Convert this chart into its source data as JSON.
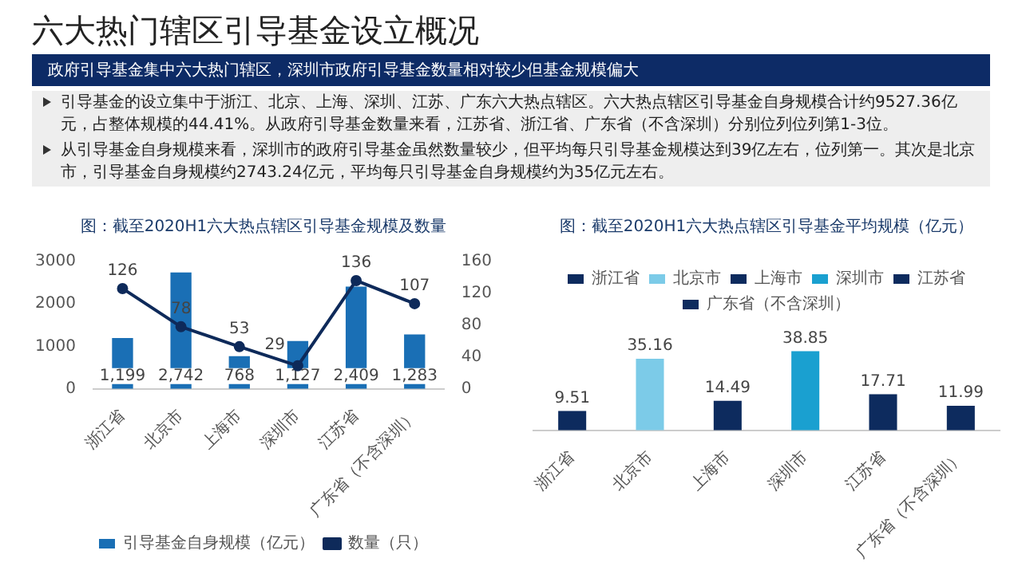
{
  "chart_data": [
    {
      "type": "bar",
      "title": "图：截至2020H1六大热点辖区引导基金规模及数量",
      "annotations": [
        "六大热门辖区引导基金设立概况",
        "政府引导基金集中六大热门辖区，深圳市政府引导基金数量相对较少但基金规模偏大",
        "引导基金的设立集中于浙江、北京、上海、深圳、江苏、广东六大热点辖区。六大热点辖区引导基金自身规模合计约9527.36亿元，占整体规模的44.41%。从政府引导基金数量来看，江苏省、浙江省、广东省（不含深圳）分别位列位列第1-3位。",
        "从引导基金自身规模来看，深圳市的政府引导基金虽然数量较少，但平均每只引导基金规模达到39亿左右，位列第一。其次是北京市，引导基金自身规模约2743.24亿元，平均每只引导基金自身规模约为35亿元左右。"
      ],
      "categories": [
        "浙江省",
        "北京市",
        "上海市",
        "深圳市",
        "江苏省",
        "广东省（不含深圳）"
      ],
      "series": [
        {
          "name": "引导基金自身规模（亿元）",
          "type": "bar",
          "color": "#1a6fb5",
          "values": [
            1199,
            2742,
            768,
            1127,
            2409,
            1283
          ],
          "value_labels": [
            "1,199",
            "2,742",
            "768",
            "1,127",
            "2,409",
            "1,283"
          ]
        },
        {
          "name": "数量（只）",
          "type": "line",
          "axis": "y2",
          "color": "#0e2a5a",
          "values": [
            126,
            78,
            53,
            29,
            136,
            107
          ],
          "value_labels": [
            "126",
            "78",
            "53",
            "29",
            "136",
            "107"
          ]
        }
      ],
      "ylim": [
        0,
        3000
      ],
      "yticks": [
        0,
        1000,
        2000,
        3000
      ],
      "y2lim": [
        0,
        160
      ],
      "y2ticks": [
        0,
        40,
        80,
        120,
        160
      ],
      "grid": false,
      "legend": "bottom",
      "marker": "circle"
    },
    {
      "type": "bar",
      "title": "图：截至2020H1六大热点辖区引导基金平均规模（亿元）",
      "categories": [
        "浙江省",
        "北京市",
        "上海市",
        "深圳市",
        "江苏省",
        "广东省（不含深圳）"
      ],
      "series": [
        {
          "name": "浙江省",
          "color": "#0d2b5e",
          "values": [
            9.51,
            null,
            null,
            null,
            null,
            null
          ]
        },
        {
          "name": "北京市",
          "color": "#7ccbe8",
          "values": [
            null,
            35.16,
            null,
            null,
            null,
            null
          ]
        },
        {
          "name": "上海市",
          "color": "#0d2b5e",
          "values": [
            null,
            null,
            14.49,
            null,
            null,
            null
          ]
        },
        {
          "name": "深圳市",
          "color": "#1aa0d0",
          "values": [
            null,
            null,
            null,
            38.85,
            null,
            null
          ]
        },
        {
          "name": "江苏省",
          "color": "#0d2b5e",
          "values": [
            null,
            null,
            null,
            null,
            17.71,
            null
          ]
        },
        {
          "name": "广东省（不含深圳）",
          "color": "#0d2b5e",
          "values": [
            null,
            null,
            null,
            null,
            null,
            11.99
          ]
        }
      ],
      "data_labels": true,
      "grid": false,
      "legend": "top",
      "tick_labels": "x"
    }
  ]
}
